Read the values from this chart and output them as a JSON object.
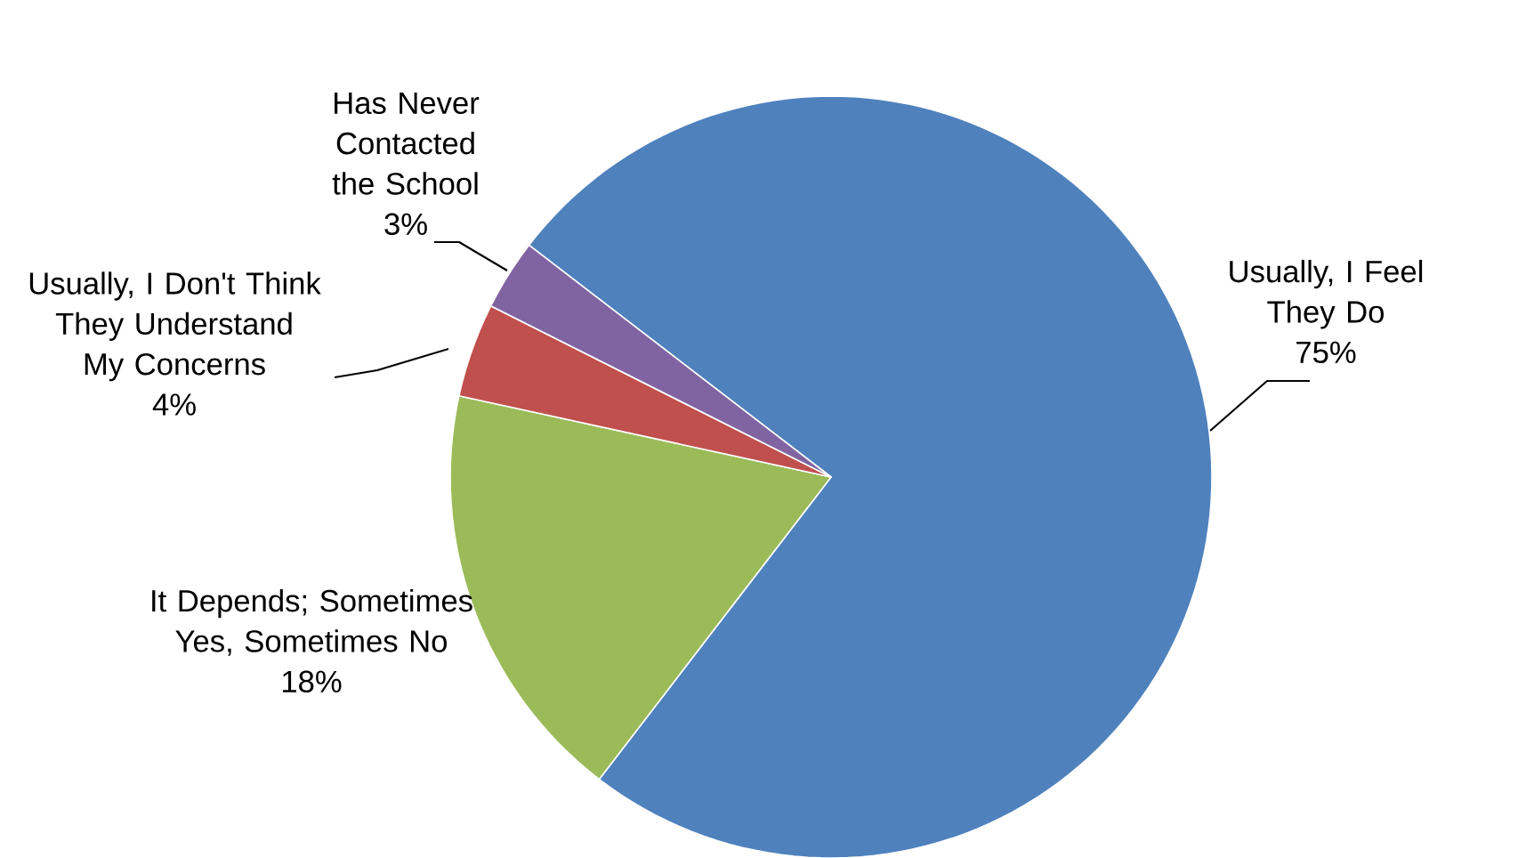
{
  "chart_data": {
    "type": "pie",
    "categories": [
      "Usually, I Feel They Do",
      "It Depends; Sometimes Yes, Sometimes No",
      "Usually, I Don't Think They Understand My Concerns",
      "Has Never Contacted the School"
    ],
    "values": [
      75,
      18,
      4,
      3
    ],
    "value_labels": [
      "75%",
      "18%",
      "4%",
      "3%"
    ],
    "colors": [
      "#4f81bd",
      "#9bbb59",
      "#c0504d",
      "#8064a2"
    ]
  }
}
